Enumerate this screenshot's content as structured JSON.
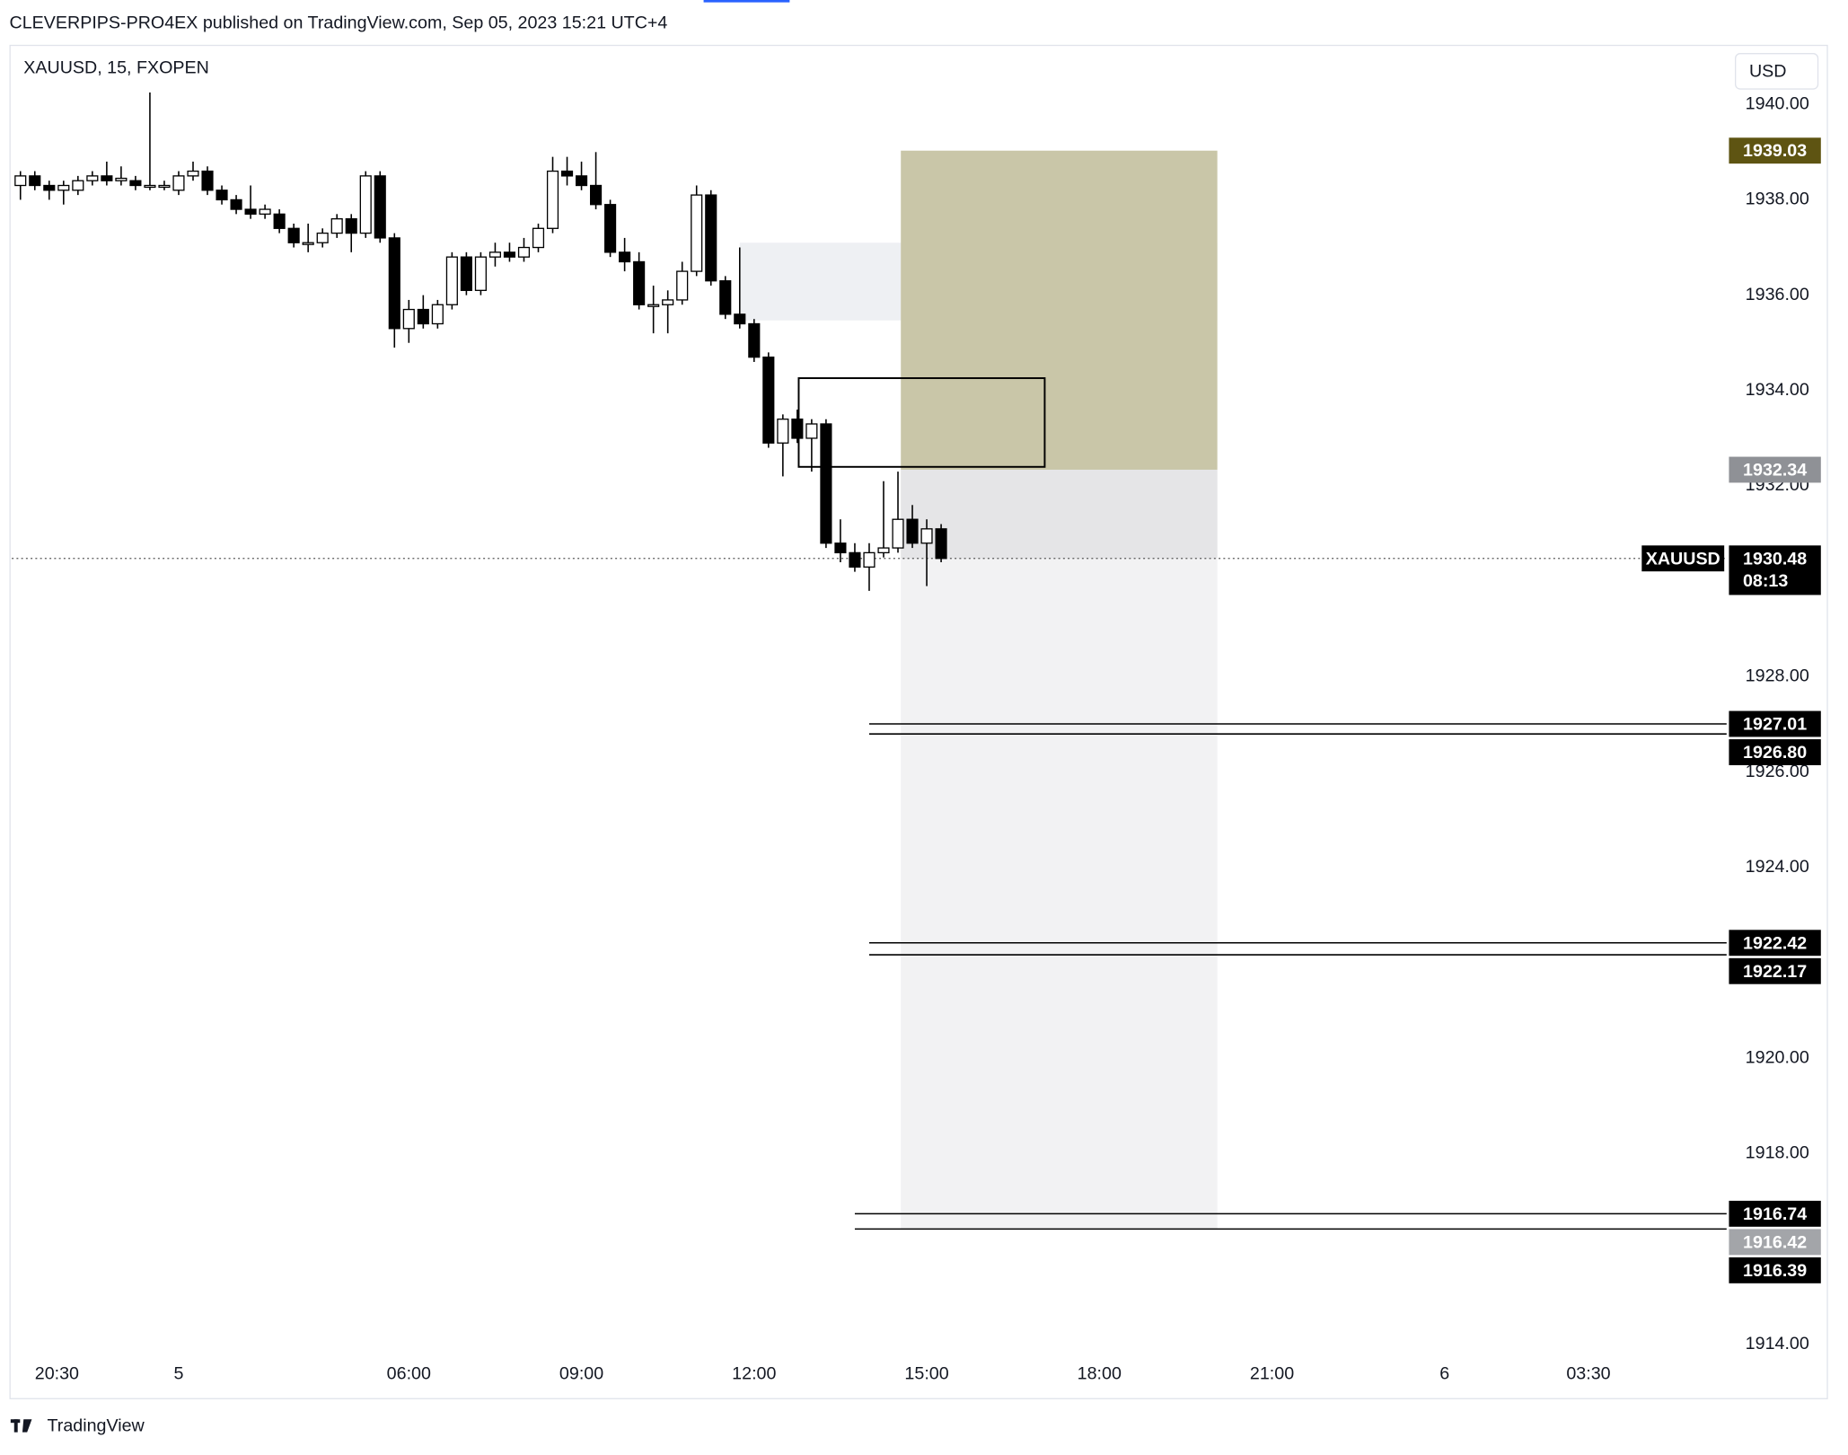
{
  "header": {
    "publisher_line": "CLEVERPIPS-PRO4EX published on TradingView.com, Sep 05, 2023 15:21 UTC+4"
  },
  "footer": {
    "brand": "TradingView"
  },
  "chart_data": {
    "type": "candlestick",
    "title": "XAUUSD, 15, FXOPEN",
    "currency": "USD",
    "x": [
      -1,
      0,
      1,
      2,
      3,
      4,
      5,
      6,
      7,
      8,
      9,
      10,
      11,
      12,
      13,
      14,
      15,
      16,
      17,
      18,
      19,
      20,
      21,
      22,
      23,
      24,
      25,
      26,
      27,
      28,
      29,
      30,
      31,
      32,
      33,
      34,
      35,
      36,
      37,
      38,
      39,
      40,
      41,
      42,
      43,
      44,
      45,
      46,
      47,
      48,
      49,
      50,
      51,
      52,
      53,
      54,
      55,
      56,
      57,
      58,
      59,
      60,
      61,
      62,
      63
    ],
    "open": [
      1938.3,
      1938.5,
      1938.3,
      1938.2,
      1938.2,
      1938.4,
      1938.5,
      1938.4,
      1938.4,
      1938.3,
      1938.3,
      1938.2,
      1938.5,
      1938.6,
      1938.2,
      1938.0,
      1937.8,
      1937.7,
      1937.7,
      1937.4,
      1937.1,
      1937.1,
      1937.3,
      1937.6,
      1937.3,
      1938.5,
      1937.2,
      1935.3,
      1935.7,
      1935.4,
      1935.8,
      1936.8,
      1936.1,
      1936.8,
      1936.9,
      1936.8,
      1937.0,
      1937.4,
      1938.6,
      1938.5,
      1938.3,
      1937.9,
      1936.9,
      1936.7,
      1935.8,
      1935.8,
      1935.9,
      1936.5,
      1938.1,
      1936.3,
      1935.6,
      1935.4,
      1934.7,
      1932.9,
      1933.4,
      1933.0,
      1933.3,
      1930.8,
      1930.6,
      1930.3,
      1930.6,
      1930.7,
      1931.3,
      1930.8,
      1931.1
    ],
    "high": [
      1938.6,
      1938.6,
      1938.4,
      1938.4,
      1938.5,
      1938.6,
      1938.8,
      1938.7,
      1938.5,
      1940.25,
      1938.4,
      1938.6,
      1938.8,
      1938.7,
      1938.3,
      1938.1,
      1938.3,
      1937.9,
      1937.8,
      1937.5,
      1937.5,
      1937.4,
      1937.7,
      1937.7,
      1938.6,
      1938.6,
      1937.3,
      1935.9,
      1936.0,
      1935.9,
      1936.9,
      1936.9,
      1936.9,
      1937.1,
      1937.1,
      1937.2,
      1937.5,
      1938.9,
      1938.9,
      1938.8,
      1939.0,
      1938.0,
      1937.2,
      1936.9,
      1936.2,
      1936.1,
      1936.7,
      1938.3,
      1938.2,
      1936.4,
      1937.0,
      1935.5,
      1934.8,
      1933.5,
      1933.6,
      1933.4,
      1933.4,
      1931.3,
      1930.8,
      1930.8,
      1932.1,
      1932.3,
      1931.6,
      1931.3,
      1931.2
    ],
    "low": [
      1938.0,
      1938.2,
      1938.0,
      1937.9,
      1938.1,
      1938.3,
      1938.3,
      1938.3,
      1938.2,
      1938.2,
      1938.2,
      1938.1,
      1938.4,
      1938.1,
      1937.9,
      1937.7,
      1937.6,
      1937.6,
      1937.3,
      1937.0,
      1936.9,
      1937.0,
      1937.2,
      1936.9,
      1937.2,
      1937.1,
      1934.9,
      1935.0,
      1935.3,
      1935.3,
      1935.7,
      1936.0,
      1936.0,
      1936.6,
      1936.7,
      1936.7,
      1936.9,
      1937.3,
      1938.3,
      1938.2,
      1937.8,
      1936.8,
      1936.5,
      1935.7,
      1935.2,
      1935.2,
      1935.8,
      1936.4,
      1936.2,
      1935.5,
      1935.3,
      1934.6,
      1932.8,
      1932.2,
      1932.9,
      1932.3,
      1930.7,
      1930.4,
      1930.2,
      1929.8,
      1930.5,
      1930.6,
      1930.7,
      1929.9,
      1930.4
    ],
    "close": [
      1938.5,
      1938.3,
      1938.2,
      1938.3,
      1938.4,
      1938.5,
      1938.4,
      1938.45,
      1938.3,
      1938.3,
      1938.3,
      1938.5,
      1938.6,
      1938.2,
      1938.0,
      1937.8,
      1937.7,
      1937.8,
      1937.4,
      1937.1,
      1937.1,
      1937.3,
      1937.6,
      1937.3,
      1938.5,
      1937.2,
      1935.3,
      1935.7,
      1935.4,
      1935.8,
      1936.8,
      1936.1,
      1936.8,
      1936.9,
      1936.8,
      1937.0,
      1937.4,
      1938.6,
      1938.5,
      1938.3,
      1937.9,
      1936.9,
      1936.7,
      1935.8,
      1935.8,
      1935.9,
      1936.5,
      1938.1,
      1936.3,
      1935.6,
      1935.4,
      1934.7,
      1932.9,
      1933.4,
      1933.0,
      1933.3,
      1930.8,
      1930.6,
      1930.3,
      1930.6,
      1930.7,
      1931.3,
      1930.8,
      1931.1,
      1930.48
    ],
    "up_color": "#ffffff",
    "down_color": "#000000",
    "xlim": [
      -1.6,
      117.6
    ],
    "xticks": [
      {
        "value": 0,
        "label": "20:30"
      },
      {
        "value": 10,
        "label": "5"
      },
      {
        "value": 26,
        "label": "06:00"
      },
      {
        "value": 38,
        "label": "09:00"
      },
      {
        "value": 50,
        "label": "12:00"
      },
      {
        "value": 62,
        "label": "15:00"
      },
      {
        "value": 74,
        "label": "18:00"
      },
      {
        "value": 86,
        "label": "21:00"
      },
      {
        "value": 98,
        "label": "6"
      },
      {
        "value": 108,
        "label": "03:30"
      }
    ],
    "ylim": [
      1912.9,
      1941.2
    ],
    "yticks": [
      {
        "value": 1914,
        "label": "1914.00"
      },
      {
        "value": 1918,
        "label": "1918.00"
      },
      {
        "value": 1920,
        "label": "1920.00"
      },
      {
        "value": 1924,
        "label": "1924.00"
      },
      {
        "value": 1926,
        "label": "1926.00"
      },
      {
        "value": 1928,
        "label": "1928.00"
      },
      {
        "value": 1932,
        "label": "1932.00"
      },
      {
        "value": 1934,
        "label": "1934.00"
      },
      {
        "value": 1936,
        "label": "1936.00"
      },
      {
        "value": 1938,
        "label": "1938.00"
      },
      {
        "value": 1940,
        "label": "1940.00"
      }
    ],
    "last_price": {
      "symbol": "XAUUSD",
      "value": 1930.48,
      "label": "1930.48",
      "countdown": "08:13"
    },
    "price_labels": [
      {
        "value": 1939.03,
        "label": "1939.03",
        "color": "#5e5412"
      },
      {
        "value": 1932.34,
        "label": "1932.34",
        "color": "#8f9196"
      },
      {
        "value": 1927.01,
        "label": "1927.01",
        "color": "#000000",
        "line_from": 58.0
      },
      {
        "value": 1926.8,
        "label": "1926.80",
        "color": "#000000",
        "line_from": 58.0
      },
      {
        "value": 1922.42,
        "label": "1922.42",
        "color": "#000000",
        "line_from": 58.0
      },
      {
        "value": 1922.17,
        "label": "1922.17",
        "color": "#000000",
        "line_from": 58.0
      },
      {
        "value": 1916.74,
        "label": "1916.74",
        "color": "#000000",
        "line_from": 57.0
      },
      {
        "value": 1916.42,
        "label": "1916.42",
        "color": "#a3a5a9",
        "line_from": 57.0
      },
      {
        "value": 1916.39,
        "label": "1916.39",
        "color": "#000000"
      }
    ],
    "zones": [
      {
        "x": [
          49.0,
          82.2
        ],
        "y": [
          1935.47,
          1937.1
        ],
        "fill": "#eef0f3"
      },
      {
        "x": [
          60.2,
          82.2
        ],
        "y": [
          1932.34,
          1939.03
        ],
        "fill": "#c9c6a8"
      },
      {
        "x": [
          60.2,
          82.2
        ],
        "y": [
          1916.42,
          1932.34
        ],
        "fill": "#f2f2f3"
      },
      {
        "x": [
          60.2,
          82.2
        ],
        "y": [
          1930.48,
          1932.34
        ],
        "fill": "#e5e5e7"
      },
      {
        "x": [
          53.1,
          70.2
        ],
        "y": [
          1932.4,
          1934.26
        ],
        "outline": "#000000"
      }
    ]
  }
}
